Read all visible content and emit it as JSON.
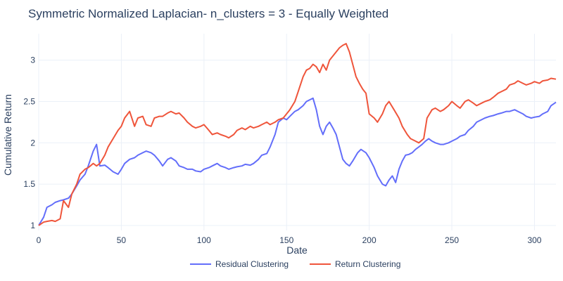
{
  "chart_data": {
    "type": "line",
    "title": "Symmetric Normalized Laplacian- n_clusters = 3 - Equally Weighted",
    "xlabel": "Date",
    "ylabel": "Cumulative Return",
    "xlim": [
      0,
      313
    ],
    "ylim": [
      0.94,
      3.32
    ],
    "xticks": [
      0,
      50,
      100,
      150,
      200,
      250,
      300
    ],
    "yticks": [
      1,
      1.5,
      2,
      2.5,
      3
    ],
    "xtick_labels": [
      "0",
      "50",
      "100",
      "150",
      "200",
      "250",
      "300"
    ],
    "ytick_labels": [
      "1",
      "1.5",
      "2",
      "2.5",
      "3"
    ],
    "grid": true,
    "legend_position": "bottom-center",
    "series": [
      {
        "name": "Residual Clustering",
        "color": "#636efa",
        "x": [
          0,
          3,
          5,
          8,
          10,
          13,
          15,
          18,
          20,
          23,
          25,
          28,
          30,
          33,
          35,
          37,
          40,
          42,
          45,
          48,
          50,
          52,
          55,
          58,
          60,
          63,
          65,
          68,
          70,
          73,
          75,
          78,
          80,
          83,
          85,
          88,
          90,
          93,
          95,
          98,
          100,
          103,
          105,
          108,
          110,
          113,
          115,
          118,
          120,
          123,
          125,
          128,
          130,
          133,
          135,
          138,
          140,
          143,
          145,
          148,
          150,
          152,
          155,
          157,
          160,
          162,
          164,
          166,
          168,
          170,
          172,
          174,
          176,
          178,
          180,
          182,
          184,
          186,
          188,
          190,
          193,
          195,
          198,
          200,
          203,
          205,
          208,
          210,
          212,
          214,
          216,
          218,
          220,
          222,
          224,
          226,
          228,
          230,
          232,
          234,
          236,
          238,
          240,
          243,
          245,
          248,
          250,
          253,
          255,
          258,
          260,
          263,
          265,
          268,
          270,
          273,
          275,
          278,
          280,
          283,
          285,
          288,
          290,
          293,
          295,
          298,
          300,
          303,
          305,
          308,
          310,
          313
        ],
        "y": [
          1.0,
          1.1,
          1.22,
          1.25,
          1.28,
          1.3,
          1.31,
          1.33,
          1.38,
          1.48,
          1.55,
          1.62,
          1.72,
          1.9,
          1.98,
          1.72,
          1.73,
          1.7,
          1.65,
          1.62,
          1.68,
          1.75,
          1.8,
          1.82,
          1.85,
          1.88,
          1.9,
          1.88,
          1.85,
          1.78,
          1.72,
          1.8,
          1.82,
          1.78,
          1.72,
          1.7,
          1.68,
          1.68,
          1.66,
          1.65,
          1.68,
          1.7,
          1.72,
          1.75,
          1.72,
          1.7,
          1.68,
          1.7,
          1.71,
          1.72,
          1.74,
          1.73,
          1.75,
          1.8,
          1.85,
          1.87,
          1.95,
          2.1,
          2.25,
          2.3,
          2.28,
          2.32,
          2.38,
          2.4,
          2.45,
          2.5,
          2.52,
          2.54,
          2.4,
          2.2,
          2.1,
          2.2,
          2.25,
          2.18,
          2.1,
          1.95,
          1.8,
          1.75,
          1.72,
          1.78,
          1.88,
          1.92,
          1.88,
          1.82,
          1.7,
          1.6,
          1.5,
          1.48,
          1.55,
          1.6,
          1.52,
          1.68,
          1.78,
          1.85,
          1.86,
          1.88,
          1.92,
          1.95,
          1.98,
          2.02,
          2.05,
          2.02,
          2.0,
          1.98,
          1.98,
          2.0,
          2.02,
          2.05,
          2.08,
          2.1,
          2.15,
          2.2,
          2.25,
          2.28,
          2.3,
          2.32,
          2.33,
          2.35,
          2.36,
          2.38,
          2.38,
          2.4,
          2.38,
          2.35,
          2.32,
          2.3,
          2.31,
          2.32,
          2.35,
          2.38,
          2.45,
          2.49
        ]
      },
      {
        "name": "Return Clustering",
        "color": "#ef553b",
        "x": [
          0,
          3,
          5,
          8,
          10,
          13,
          15,
          18,
          20,
          23,
          25,
          28,
          30,
          33,
          35,
          37,
          40,
          42,
          45,
          48,
          50,
          52,
          55,
          58,
          60,
          63,
          65,
          68,
          70,
          73,
          75,
          78,
          80,
          83,
          85,
          88,
          90,
          93,
          95,
          98,
          100,
          103,
          105,
          108,
          110,
          113,
          115,
          118,
          120,
          123,
          125,
          128,
          130,
          133,
          135,
          138,
          140,
          143,
          145,
          148,
          150,
          152,
          155,
          157,
          160,
          162,
          164,
          166,
          168,
          170,
          172,
          174,
          176,
          178,
          180,
          182,
          184,
          186,
          188,
          190,
          192,
          194,
          196,
          198,
          200,
          203,
          205,
          208,
          210,
          212,
          215,
          218,
          220,
          223,
          225,
          228,
          230,
          233,
          235,
          238,
          240,
          243,
          245,
          248,
          250,
          253,
          255,
          258,
          260,
          263,
          265,
          268,
          270,
          273,
          275,
          278,
          280,
          283,
          285,
          288,
          290,
          293,
          295,
          298,
          300,
          303,
          305,
          308,
          310,
          313
        ],
        "y": [
          1.0,
          1.04,
          1.05,
          1.06,
          1.05,
          1.08,
          1.3,
          1.22,
          1.38,
          1.5,
          1.62,
          1.68,
          1.7,
          1.75,
          1.72,
          1.75,
          1.85,
          1.95,
          2.05,
          2.15,
          2.2,
          2.3,
          2.38,
          2.2,
          2.3,
          2.32,
          2.22,
          2.2,
          2.3,
          2.32,
          2.32,
          2.36,
          2.38,
          2.35,
          2.36,
          2.3,
          2.25,
          2.2,
          2.18,
          2.2,
          2.22,
          2.15,
          2.1,
          2.12,
          2.1,
          2.08,
          2.06,
          2.1,
          2.15,
          2.18,
          2.16,
          2.2,
          2.18,
          2.2,
          2.22,
          2.25,
          2.22,
          2.25,
          2.28,
          2.3,
          2.35,
          2.4,
          2.5,
          2.62,
          2.8,
          2.88,
          2.9,
          2.95,
          2.92,
          2.85,
          2.95,
          2.88,
          3.0,
          3.05,
          3.1,
          3.15,
          3.18,
          3.2,
          3.1,
          2.95,
          2.8,
          2.72,
          2.65,
          2.6,
          2.35,
          2.3,
          2.25,
          2.35,
          2.45,
          2.5,
          2.4,
          2.3,
          2.2,
          2.1,
          2.05,
          2.02,
          2.0,
          2.05,
          2.3,
          2.4,
          2.42,
          2.38,
          2.4,
          2.45,
          2.5,
          2.45,
          2.42,
          2.5,
          2.52,
          2.48,
          2.45,
          2.48,
          2.5,
          2.52,
          2.55,
          2.6,
          2.62,
          2.65,
          2.7,
          2.72,
          2.75,
          2.72,
          2.7,
          2.72,
          2.74,
          2.72,
          2.75,
          2.76,
          2.78,
          2.77
        ]
      }
    ]
  }
}
